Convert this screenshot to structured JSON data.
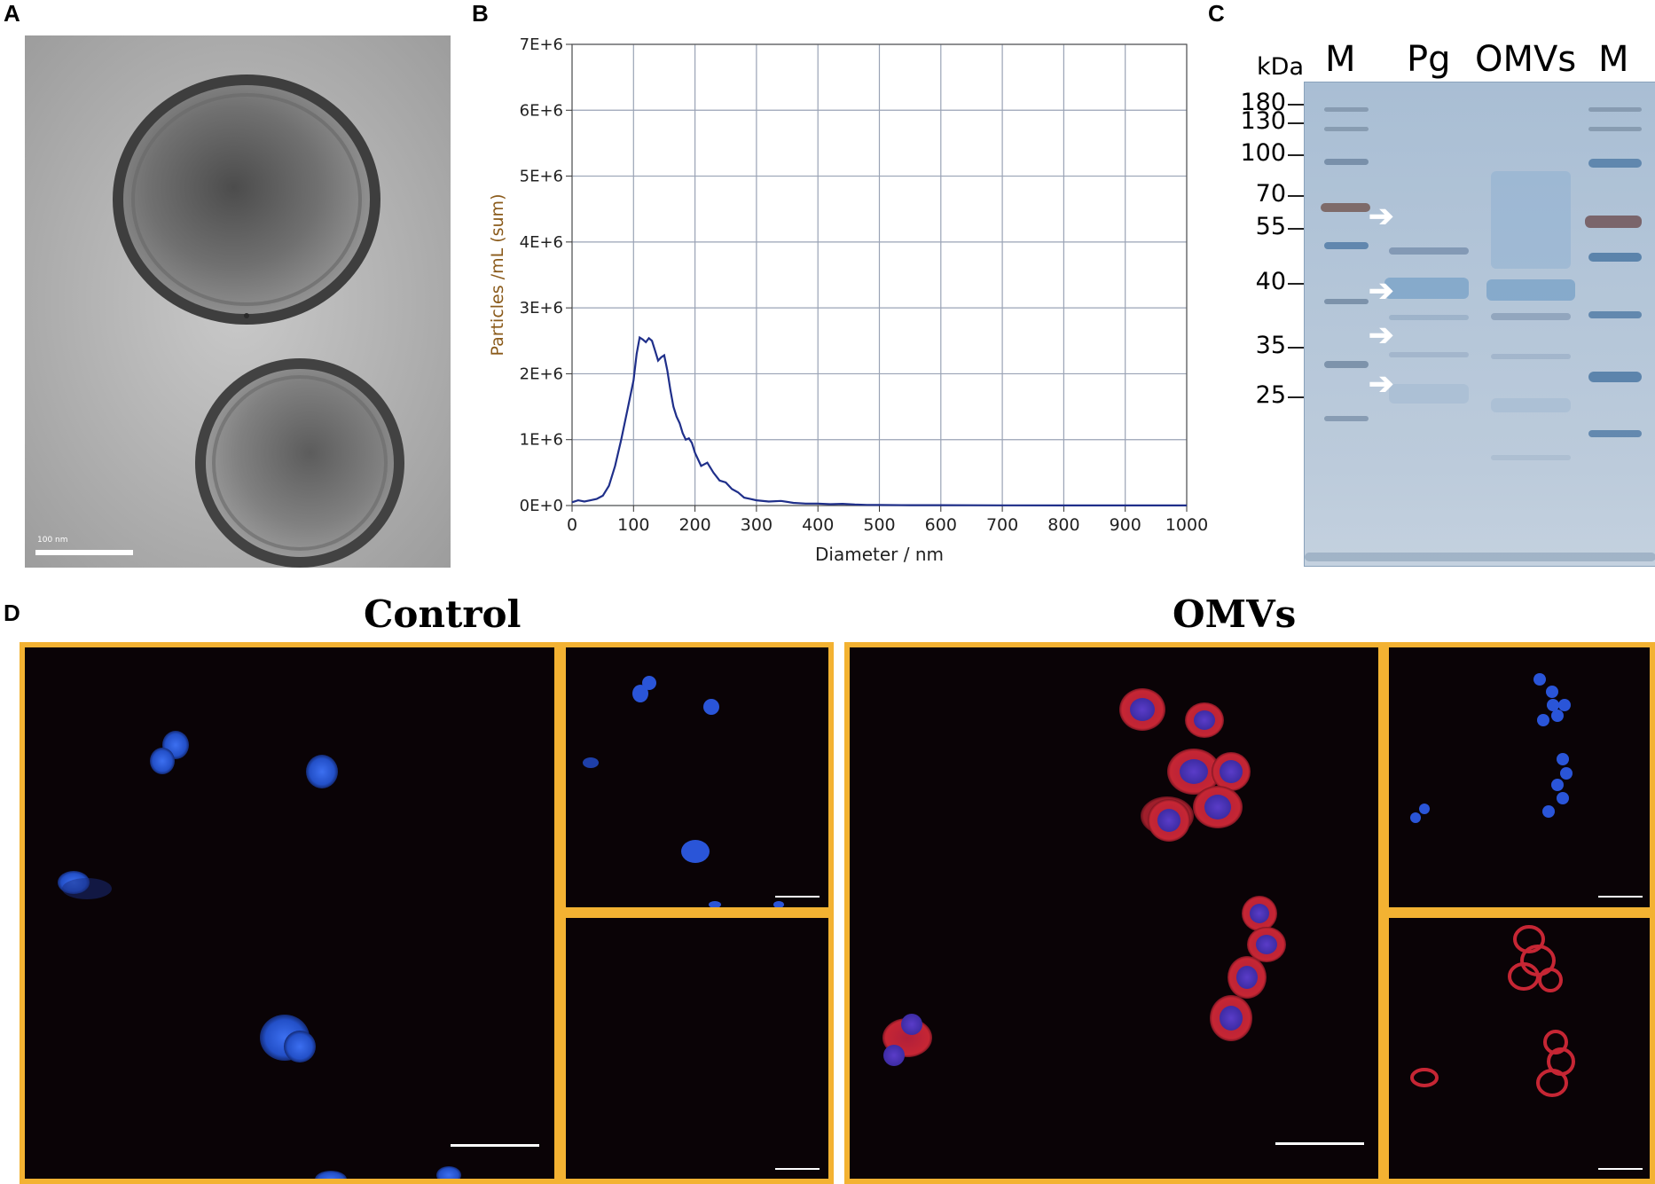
{
  "panels": {
    "a": {
      "letter": "A",
      "scale_label": "100 nm"
    },
    "b": {
      "letter": "B"
    },
    "c": {
      "letter": "C"
    },
    "d": {
      "letter": "D"
    }
  },
  "chart_data": {
    "type": "line",
    "xlabel": "Diameter / nm",
    "ylabel": "Particles /mL (sum)",
    "xlim": [
      0,
      1000
    ],
    "ylim": [
      0,
      7000000
    ],
    "x_ticks": [
      0,
      100,
      200,
      300,
      400,
      500,
      600,
      700,
      800,
      900,
      1000
    ],
    "x_tick_labels": [
      "0",
      "100",
      "200",
      "300",
      "400",
      "500",
      "600",
      "700",
      "800",
      "900",
      "1000"
    ],
    "y_ticks": [
      0,
      1000000,
      2000000,
      3000000,
      4000000,
      5000000,
      6000000,
      7000000
    ],
    "y_tick_labels": [
      "0E+0",
      "1E+6",
      "2E+6",
      "3E+6",
      "4E+6",
      "5E+6",
      "6E+6",
      "7E+6"
    ],
    "grid": true,
    "line_color": "#1f2f8a",
    "series": [
      {
        "x": [
          0,
          10,
          20,
          30,
          40,
          50,
          60,
          70,
          80,
          90,
          100,
          105,
          110,
          115,
          120,
          125,
          130,
          135,
          140,
          145,
          150,
          155,
          160,
          165,
          170,
          175,
          180,
          185,
          190,
          195,
          200,
          210,
          220,
          230,
          240,
          250,
          260,
          270,
          280,
          290,
          300,
          320,
          340,
          360,
          380,
          400,
          420,
          440,
          460,
          480,
          500,
          550,
          600,
          650,
          700,
          800,
          900,
          1000
        ],
        "values": [
          50000,
          80000,
          60000,
          80000,
          100000,
          150000,
          300000,
          600000,
          1000000,
          1450000,
          1900000,
          2300000,
          2550000,
          2520000,
          2480000,
          2540000,
          2500000,
          2350000,
          2200000,
          2250000,
          2280000,
          2050000,
          1750000,
          1500000,
          1350000,
          1250000,
          1100000,
          1000000,
          1020000,
          950000,
          800000,
          600000,
          650000,
          500000,
          380000,
          350000,
          250000,
          200000,
          120000,
          100000,
          80000,
          60000,
          70000,
          40000,
          30000,
          30000,
          20000,
          25000,
          15000,
          10000,
          8000,
          6000,
          5000,
          4000,
          3000,
          2000,
          2000,
          2000
        ]
      }
    ]
  },
  "gel": {
    "kda_label": "kDa",
    "lane_labels": [
      "M",
      "Pg",
      "OMVs",
      "M"
    ],
    "markers": [
      {
        "label": "180",
        "kda": 180
      },
      {
        "label": "130",
        "kda": 130
      },
      {
        "label": "100",
        "kda": 100
      },
      {
        "label": "70",
        "kda": 70
      },
      {
        "label": "55",
        "kda": 55
      },
      {
        "label": "40",
        "kda": 40
      },
      {
        "label": "35",
        "kda": 35
      },
      {
        "label": "25",
        "kda": 25
      }
    ],
    "arrow_glyph": "➔"
  },
  "confocal": {
    "conditions": [
      "Control",
      "OMVs"
    ],
    "frame_color": "#f3b232",
    "channel_colors": {
      "nucleus": "#2f5bd6",
      "vesicle": "#d62a2a"
    }
  }
}
